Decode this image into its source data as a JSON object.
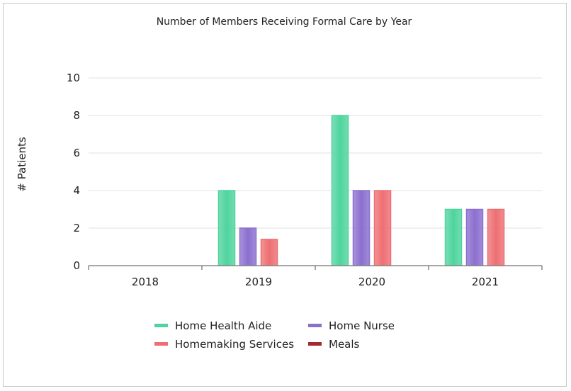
{
  "chart_data": {
    "type": "bar",
    "title": "Number of Members Receiving Formal Care by Year",
    "ylabel": "# Patients",
    "xlabel": "",
    "ylim": [
      0,
      10
    ],
    "yticks": [
      0,
      2,
      4,
      6,
      8,
      10
    ],
    "grid": true,
    "legend_position": "bottom",
    "categories": [
      "2018",
      "2019",
      "2020",
      "2021"
    ],
    "series": [
      {
        "name": "Home Health Aide",
        "color": "#4fd49e",
        "values": [
          0,
          4,
          8,
          3
        ]
      },
      {
        "name": "Home Nurse",
        "color": "#8b6fcf",
        "values": [
          0,
          2,
          4,
          3
        ]
      },
      {
        "name": "Homemaking Services",
        "color": "#ee6f73",
        "values": [
          0,
          1.4,
          4,
          3
        ]
      },
      {
        "name": "Meals",
        "color": "#a32a2f",
        "values": [
          0,
          0,
          0,
          0
        ]
      }
    ]
  }
}
